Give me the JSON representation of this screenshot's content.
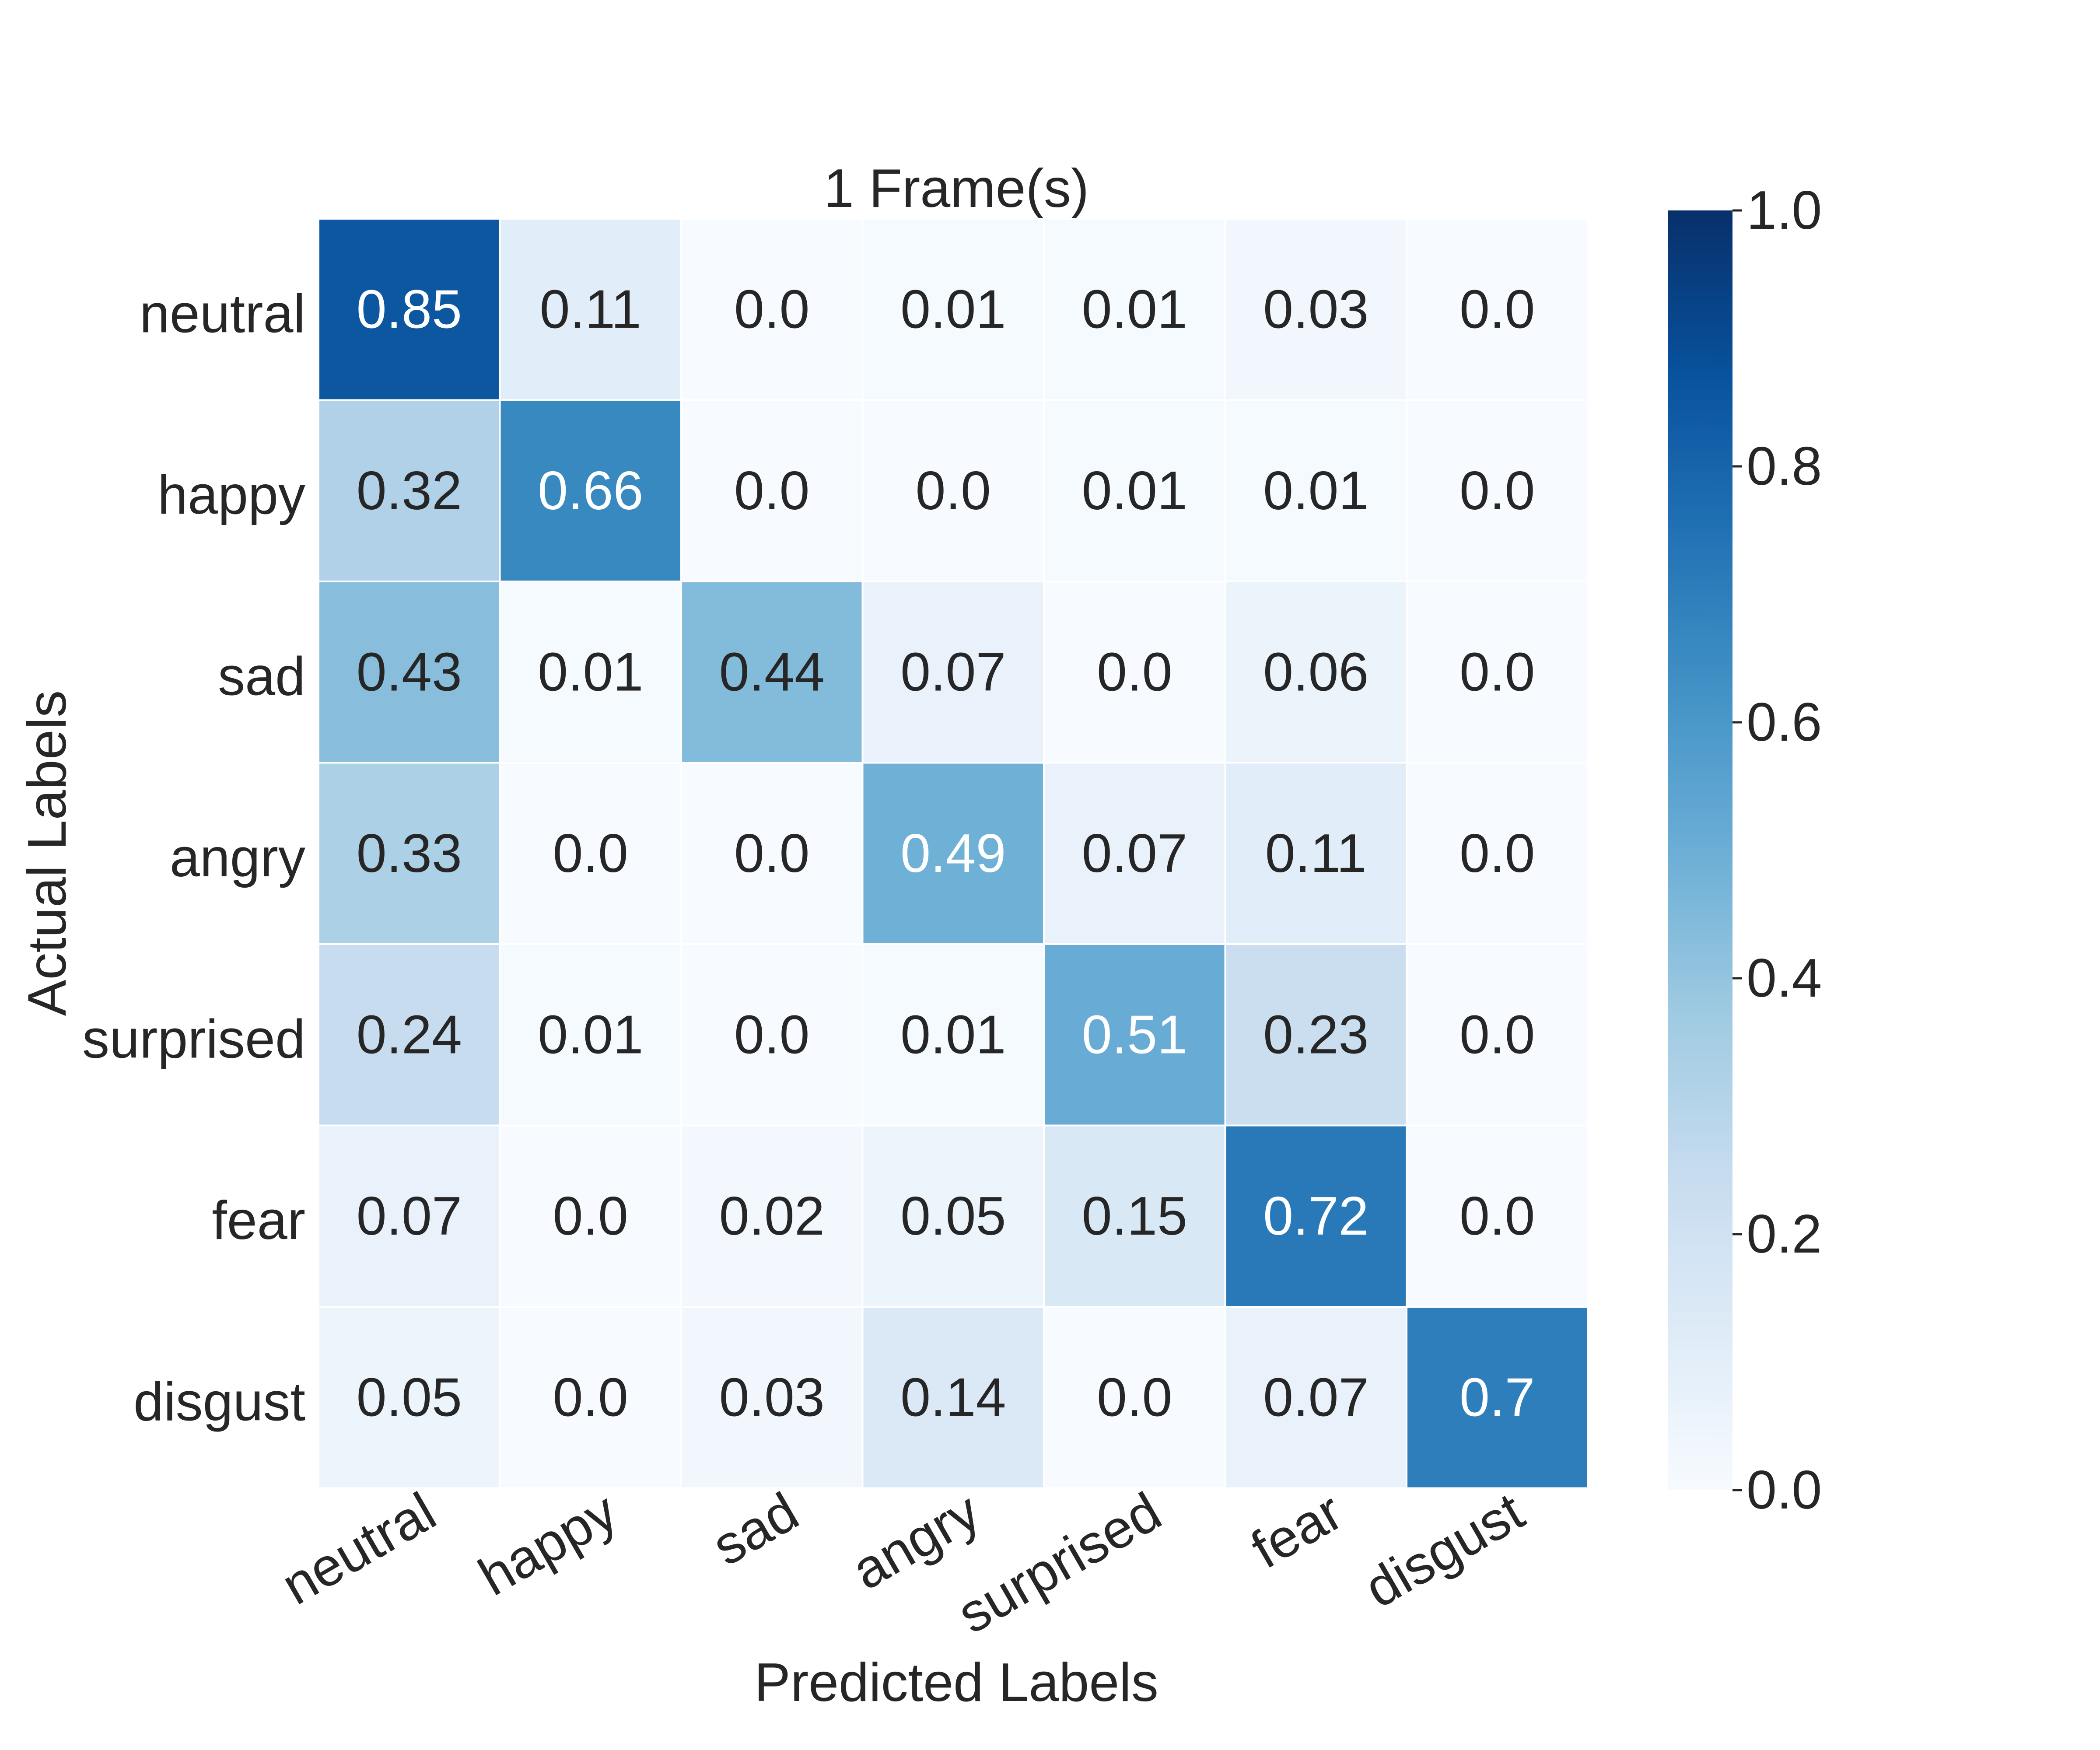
{
  "chart_data": {
    "type": "heatmap",
    "title": "1 Frame(s)",
    "xlabel": "Predicted Labels",
    "ylabel": "Actual Labels",
    "x_categories": [
      "neutral",
      "happy",
      "sad",
      "angry",
      "surprised",
      "fear",
      "disgust"
    ],
    "y_categories": [
      "neutral",
      "happy",
      "sad",
      "angry",
      "surprised",
      "fear",
      "disgust"
    ],
    "values": [
      [
        0.85,
        0.11,
        0.0,
        0.01,
        0.01,
        0.03,
        0.0
      ],
      [
        0.32,
        0.66,
        0.0,
        0.0,
        0.01,
        0.01,
        0.0
      ],
      [
        0.43,
        0.01,
        0.44,
        0.07,
        0.0,
        0.06,
        0.0
      ],
      [
        0.33,
        0.0,
        0.0,
        0.49,
        0.07,
        0.11,
        0.0
      ],
      [
        0.24,
        0.01,
        0.0,
        0.01,
        0.51,
        0.23,
        0.0
      ],
      [
        0.07,
        0.0,
        0.02,
        0.05,
        0.15,
        0.72,
        0.0
      ],
      [
        0.05,
        0.0,
        0.03,
        0.14,
        0.0,
        0.07,
        0.7
      ]
    ],
    "cell_labels": [
      [
        "0.85",
        "0.11",
        "0.0",
        "0.01",
        "0.01",
        "0.03",
        "0.0"
      ],
      [
        "0.32",
        "0.66",
        "0.0",
        "0.0",
        "0.01",
        "0.01",
        "0.0"
      ],
      [
        "0.43",
        "0.01",
        "0.44",
        "0.07",
        "0.0",
        "0.06",
        "0.0"
      ],
      [
        "0.33",
        "0.0",
        "0.0",
        "0.49",
        "0.07",
        "0.11",
        "0.0"
      ],
      [
        "0.24",
        "0.01",
        "0.0",
        "0.01",
        "0.51",
        "0.23",
        "0.0"
      ],
      [
        "0.07",
        "0.0",
        "0.02",
        "0.05",
        "0.15",
        "0.72",
        "0.0"
      ],
      [
        "0.05",
        "0.0",
        "0.03",
        "0.14",
        "0.0",
        "0.07",
        "0.7"
      ]
    ],
    "colormap": "Blues",
    "colorscale": [
      "#f7fbff",
      "#deebf7",
      "#c6dbef",
      "#9ecae1",
      "#6baed6",
      "#4292c6",
      "#2171b5",
      "#08519c",
      "#08306b"
    ],
    "colorbar": {
      "range": [
        0.0,
        1.0
      ],
      "ticks": [
        "0.0",
        "0.2",
        "0.4",
        "0.6",
        "0.8",
        "1.0"
      ]
    }
  }
}
